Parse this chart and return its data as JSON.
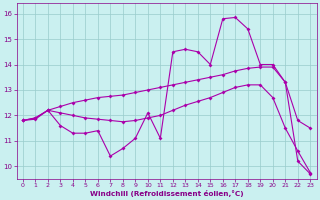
{
  "bg_color": "#caf0f0",
  "line_color": "#aa00aa",
  "grid_color": "#99cccc",
  "xlabel": "Windchill (Refroidissement éolien,°C)",
  "xlabel_color": "#880088",
  "tick_color": "#880088",
  "ylim": [
    9.5,
    16.4
  ],
  "xlim": [
    -0.5,
    23.5
  ],
  "yticks": [
    10,
    11,
    12,
    13,
    14,
    15,
    16
  ],
  "xticks": [
    0,
    1,
    2,
    3,
    4,
    5,
    6,
    7,
    8,
    9,
    10,
    11,
    12,
    13,
    14,
    15,
    16,
    17,
    18,
    19,
    20,
    21,
    22,
    23
  ],
  "series1_x": [
    0,
    1,
    2,
    3,
    4,
    5,
    6,
    7,
    8,
    9,
    10,
    11,
    12,
    13,
    14,
    15,
    16,
    17,
    18,
    19,
    20,
    21,
    22,
    23
  ],
  "series1_y": [
    11.8,
    11.9,
    12.2,
    11.6,
    11.3,
    11.3,
    11.4,
    10.4,
    10.7,
    11.1,
    12.1,
    11.1,
    14.5,
    14.6,
    14.5,
    14.0,
    15.8,
    15.85,
    15.4,
    14.0,
    14.0,
    13.3,
    10.2,
    9.7
  ],
  "series2_x": [
    0,
    1,
    2,
    3,
    4,
    5,
    6,
    7,
    8,
    9,
    10,
    11,
    12,
    13,
    14,
    15,
    16,
    17,
    18,
    19,
    20,
    21,
    22,
    23
  ],
  "series2_y": [
    11.8,
    11.9,
    12.2,
    12.35,
    12.5,
    12.6,
    12.7,
    12.75,
    12.8,
    12.9,
    13.0,
    13.1,
    13.2,
    13.3,
    13.4,
    13.5,
    13.6,
    13.75,
    13.85,
    13.9,
    13.9,
    13.3,
    11.8,
    11.5
  ],
  "series3_x": [
    0,
    1,
    2,
    3,
    4,
    5,
    6,
    7,
    8,
    9,
    10,
    11,
    12,
    13,
    14,
    15,
    16,
    17,
    18,
    19,
    20,
    21,
    22,
    23
  ],
  "series3_y": [
    11.8,
    11.85,
    12.2,
    12.1,
    12.0,
    11.9,
    11.85,
    11.8,
    11.75,
    11.8,
    11.9,
    12.0,
    12.2,
    12.4,
    12.55,
    12.7,
    12.9,
    13.1,
    13.2,
    13.2,
    12.7,
    11.5,
    10.6,
    9.75
  ]
}
